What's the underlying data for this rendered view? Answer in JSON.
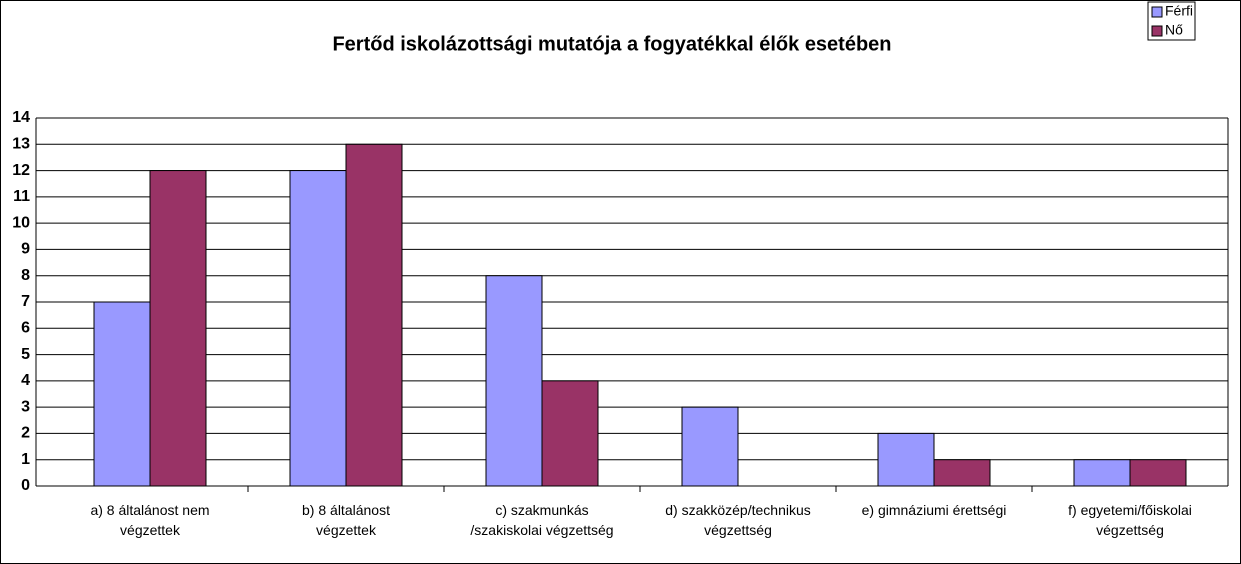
{
  "chart_data": {
    "type": "bar",
    "title": "Fertőd iskolázottsági mutatója a fogyatékkal élők esetében",
    "categories": [
      "a) 8 általánost nem\nvégzettek",
      "b) 8 általánost\nvégzettek",
      "c) szakmunkás\n/szakiskolai végzettség",
      "d) szakközép/technikus\nvégzettség",
      "e) gimnáziumi érettségi",
      "f) egyetemi/főiskolai\nvégzettség"
    ],
    "series": [
      {
        "name": "Férfi",
        "color": "#9999ff",
        "values": [
          7,
          12,
          8,
          3,
          2,
          1
        ]
      },
      {
        "name": "Nő",
        "color": "#993366",
        "values": [
          12,
          13,
          4,
          0,
          1,
          1
        ]
      }
    ],
    "ylim": [
      0,
      14
    ],
    "yticks": [
      0,
      1,
      2,
      3,
      4,
      5,
      6,
      7,
      8,
      9,
      10,
      11,
      12,
      13,
      14
    ],
    "grid": true,
    "legend": "top-right"
  }
}
